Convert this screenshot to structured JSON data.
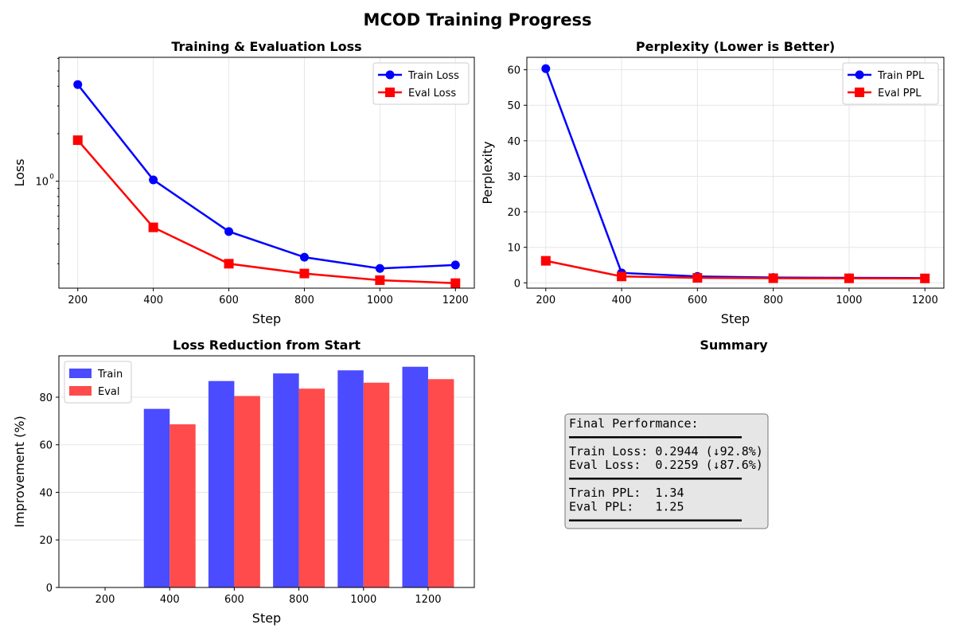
{
  "figure": {
    "title": "MCOD Training Progress"
  },
  "colors": {
    "train": "#0000ff",
    "eval": "#ff0000",
    "train_bar": "#4b4bff",
    "eval_bar": "#ff4b4b",
    "grid": "#e6e6e6",
    "summary_bg": "#e6e6e6"
  },
  "chart_data": [
    {
      "type": "line",
      "title": "Training & Evaluation Loss",
      "xlabel": "Step",
      "ylabel": "Loss",
      "yscale": "log",
      "x": [
        200,
        400,
        600,
        800,
        1000,
        1200
      ],
      "xticks": [
        200,
        400,
        600,
        800,
        1000,
        1200
      ],
      "ylim": [
        0.21,
        6.1
      ],
      "yticks": [
        {
          "value": 1.0,
          "label": "10"
        }
      ],
      "ytick_exp": "0",
      "grid": true,
      "legend": "top-right",
      "series": [
        {
          "name": "Train Loss",
          "marker": "circle",
          "values": [
            4.1,
            1.02,
            0.48,
            0.33,
            0.28,
            0.2944
          ]
        },
        {
          "name": "Eval Loss",
          "marker": "square",
          "values": [
            1.82,
            0.51,
            0.3,
            0.26,
            0.236,
            0.2259
          ]
        }
      ]
    },
    {
      "type": "line",
      "title": "Perplexity (Lower is Better)",
      "xlabel": "Step",
      "ylabel": "Perplexity",
      "x": [
        200,
        400,
        600,
        800,
        1000,
        1200
      ],
      "xticks": [
        200,
        400,
        600,
        800,
        1000,
        1200
      ],
      "ylim": [
        -1.5,
        63.5
      ],
      "yticks": [
        0,
        10,
        20,
        30,
        40,
        50,
        60
      ],
      "grid": true,
      "legend": "top-right",
      "series": [
        {
          "name": "Train PPL",
          "marker": "circle",
          "values": [
            60.3,
            2.8,
            1.8,
            1.5,
            1.4,
            1.34
          ]
        },
        {
          "name": "Eval PPL",
          "marker": "square",
          "values": [
            6.2,
            1.8,
            1.4,
            1.3,
            1.27,
            1.25
          ]
        }
      ]
    },
    {
      "type": "bar",
      "title": "Loss Reduction from Start",
      "xlabel": "Step",
      "ylabel": "Improvement (%)",
      "categories": [
        "200",
        "400",
        "600",
        "800",
        "1000",
        "1200"
      ],
      "ylim": [
        0,
        97.4
      ],
      "yticks": [
        0,
        20,
        40,
        60,
        80
      ],
      "grid": true,
      "legend": "top-left",
      "series": [
        {
          "name": "Train",
          "values": [
            0,
            75.1,
            86.8,
            90.0,
            91.3,
            92.8
          ]
        },
        {
          "name": "Eval",
          "values": [
            0,
            68.6,
            80.5,
            83.6,
            86.1,
            87.6
          ]
        }
      ]
    }
  ],
  "summary": {
    "title": "Summary",
    "lines": [
      "Final Performance:",
      "━━━━━━━━━━━━━━━━━━━━━━━━",
      "Train Loss: 0.2944 (↓92.8%)",
      "Eval Loss:  0.2259 (↓87.6%)",
      "━━━━━━━━━━━━━━━━━━━━━━━━",
      "Train PPL:  1.34",
      "Eval PPL:   1.25",
      "━━━━━━━━━━━━━━━━━━━━━━━━"
    ]
  }
}
